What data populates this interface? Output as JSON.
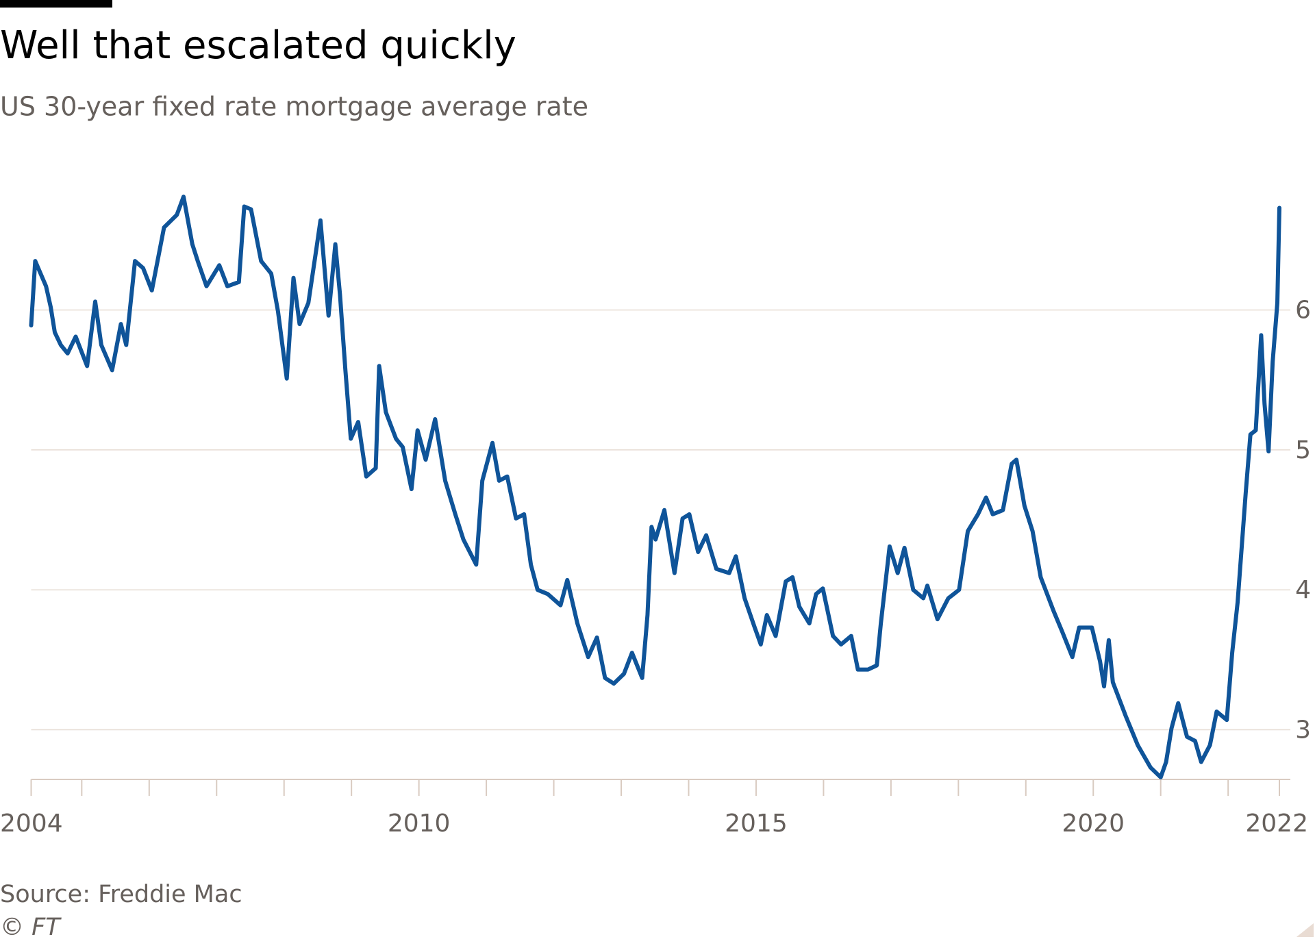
{
  "chart_data": {
    "type": "line",
    "title": "Well that escalated quickly",
    "subtitle": "US 30-year fixed rate mortgage average rate",
    "source": "Source: Freddie Mac",
    "copyright": "© FT",
    "color": "#0f5499",
    "x": [
      2004.25,
      2004.31,
      2004.47,
      2004.54,
      2004.6,
      2004.69,
      2004.79,
      2004.91,
      2005.08,
      2005.2,
      2005.29,
      2005.45,
      2005.58,
      2005.66,
      2005.79,
      2005.91,
      2006.04,
      2006.22,
      2006.41,
      2006.51,
      2006.64,
      2006.72,
      2006.85,
      2007.04,
      2007.16,
      2007.33,
      2007.41,
      2007.51,
      2007.66,
      2007.81,
      2007.91,
      2008.04,
      2008.14,
      2008.23,
      2008.36,
      2008.48,
      2008.54,
      2008.66,
      2008.76,
      2008.83,
      2008.91,
      2008.99,
      2009.1,
      2009.22,
      2009.36,
      2009.41,
      2009.51,
      2009.66,
      2009.76,
      2009.89,
      2009.98,
      2010.1,
      2010.24,
      2010.39,
      2010.54,
      2010.66,
      2010.85,
      2010.94,
      2011.09,
      2011.19,
      2011.31,
      2011.44,
      2011.56,
      2011.66,
      2011.76,
      2011.91,
      2012.1,
      2012.2,
      2012.35,
      2012.51,
      2012.64,
      2012.76,
      2012.89,
      2013.04,
      2013.16,
      2013.31,
      2013.39,
      2013.45,
      2013.51,
      2013.64,
      2013.79,
      2013.91,
      2014.01,
      2014.14,
      2014.26,
      2014.41,
      2014.6,
      2014.7,
      2014.83,
      2014.98,
      2015.07,
      2015.16,
      2015.29,
      2015.44,
      2015.54,
      2015.64,
      2015.79,
      2015.89,
      2015.99,
      2016.14,
      2016.26,
      2016.41,
      2016.51,
      2016.66,
      2016.79,
      2016.85,
      2016.98,
      2017.1,
      2017.2,
      2017.33,
      2017.48,
      2017.54,
      2017.69,
      2017.85,
      2018.01,
      2018.14,
      2018.29,
      2018.41,
      2018.51,
      2018.66,
      2018.79,
      2018.86,
      2018.98,
      2019.1,
      2019.22,
      2019.41,
      2019.54,
      2019.69,
      2019.79,
      2019.98,
      2020.1,
      2020.16,
      2020.23,
      2020.29,
      2020.48,
      2020.66,
      2020.85,
      2021.0,
      2021.08,
      2021.16,
      2021.26,
      2021.39,
      2021.51,
      2021.6,
      2021.73,
      2021.83,
      2021.98,
      2022.06,
      2022.14,
      2022.26,
      2022.33,
      2022.41,
      2022.49,
      2022.54,
      2022.6,
      2022.66,
      2022.73,
      2022.76
    ],
    "values": [
      5.89,
      6.35,
      6.17,
      6.02,
      5.84,
      5.75,
      5.69,
      5.81,
      5.6,
      6.06,
      5.75,
      5.57,
      5.9,
      5.75,
      6.35,
      6.3,
      6.14,
      6.59,
      6.68,
      6.81,
      6.47,
      6.35,
      6.17,
      6.32,
      6.17,
      6.2,
      6.74,
      6.72,
      6.35,
      6.26,
      5.99,
      5.51,
      6.23,
      5.9,
      6.05,
      6.44,
      6.64,
      5.96,
      6.47,
      6.11,
      5.57,
      5.08,
      5.2,
      4.81,
      4.87,
      5.6,
      5.27,
      5.08,
      5.02,
      4.72,
      5.14,
      4.93,
      5.22,
      4.78,
      4.54,
      4.36,
      4.18,
      4.78,
      5.05,
      4.78,
      4.81,
      4.51,
      4.54,
      4.18,
      4.0,
      3.97,
      3.89,
      4.07,
      3.76,
      3.52,
      3.66,
      3.37,
      3.33,
      3.4,
      3.55,
      3.37,
      3.82,
      4.45,
      4.36,
      4.57,
      4.12,
      4.51,
      4.54,
      4.27,
      4.39,
      4.15,
      4.12,
      4.24,
      3.94,
      3.73,
      3.61,
      3.82,
      3.67,
      4.06,
      4.09,
      3.88,
      3.76,
      3.97,
      4.01,
      3.67,
      3.61,
      3.67,
      3.43,
      3.43,
      3.46,
      3.76,
      4.31,
      4.12,
      4.3,
      4.0,
      3.94,
      4.03,
      3.79,
      3.94,
      4.0,
      4.42,
      4.54,
      4.66,
      4.54,
      4.57,
      4.9,
      4.93,
      4.6,
      4.42,
      4.09,
      3.85,
      3.7,
      3.52,
      3.73,
      3.73,
      3.49,
      3.31,
      3.64,
      3.34,
      3.1,
      2.89,
      2.73,
      2.66,
      2.77,
      3.01,
      3.19,
      2.95,
      2.92,
      2.77,
      2.89,
      3.13,
      3.07,
      3.55,
      3.91,
      4.69,
      5.11,
      5.14,
      5.82,
      5.33,
      4.99,
      5.63,
      6.05,
      6.73
    ],
    "xlim": [
      2004.25,
      2022.76
    ],
    "xticks": [
      {
        "value": 2004.25,
        "label": "2004"
      },
      2010,
      2015,
      2020,
      {
        "value": 2022.76,
        "label": "2022"
      }
    ],
    "xminorticks": [
      2005,
      2006,
      2007,
      2008,
      2009,
      2011,
      2012,
      2013,
      2014,
      2016,
      2017,
      2018,
      2019,
      2021,
      2022
    ],
    "ylim": [
      2.645,
      6.85
    ],
    "yticks": [
      3,
      4,
      5,
      6
    ],
    "grid": true
  }
}
